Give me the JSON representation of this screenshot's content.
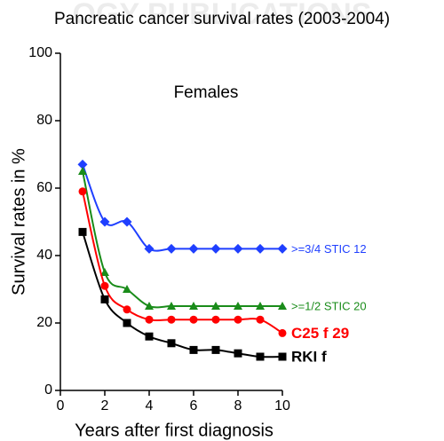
{
  "watermark": "OGY PUBLICATIONS",
  "chart_data": {
    "type": "line",
    "title": "Pancreatic cancer survival rates (2003-2004)",
    "annotation": "Females",
    "x_label": "Years after first diagnosis",
    "y_label": "Survival rates in %",
    "x": [
      1,
      2,
      3,
      4,
      5,
      6,
      7,
      8,
      9,
      10
    ],
    "series": [
      {
        "name": ">=3/4 STIC 12",
        "color": "#1f3fff",
        "marker": "diamond",
        "label_weight": "normal",
        "values": [
          67,
          50,
          50,
          42,
          42,
          42,
          42,
          42,
          42,
          42
        ]
      },
      {
        "name": ">=1/2 STIC 20",
        "color": "#1a8c1a",
        "marker": "triangle",
        "label_weight": "normal",
        "values": [
          65,
          35,
          30,
          25,
          25,
          25,
          25,
          25,
          25,
          25
        ]
      },
      {
        "name": "C25 f 29",
        "color": "#ff0000",
        "marker": "circle",
        "label_weight": "bold",
        "values": [
          59,
          31,
          24,
          21,
          21,
          21,
          21,
          21,
          21,
          17
        ]
      },
      {
        "name": "RKI f",
        "color": "#000000",
        "marker": "square",
        "label_weight": "bold",
        "values": [
          47,
          27,
          20,
          16,
          14,
          12,
          12,
          11,
          10,
          10
        ]
      }
    ],
    "xlim": [
      0,
      10
    ],
    "xticks": [
      0,
      2,
      4,
      6,
      8,
      10
    ],
    "ylim": [
      0,
      100
    ],
    "yticks": [
      0,
      20,
      40,
      60,
      80,
      100
    ],
    "grid": false
  }
}
